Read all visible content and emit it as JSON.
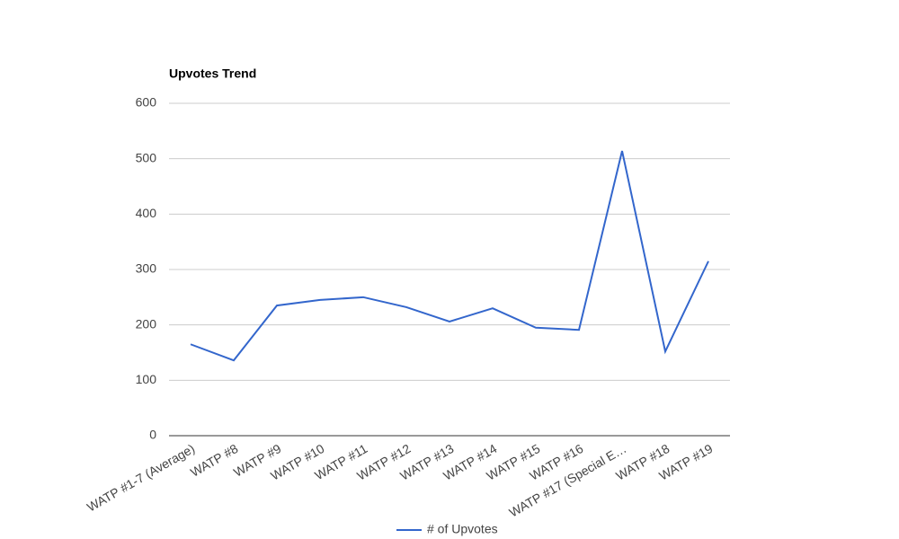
{
  "chart_data": {
    "type": "line",
    "title": "Upvotes Trend",
    "categories": [
      "WATP #1-7 (Average)",
      "WATP #8",
      "WATP #9",
      "WATP #10",
      "WATP #11",
      "WATP #12",
      "WATP #13",
      "WATP #14",
      "WATP #15",
      "WATP #16",
      "WATP #17 (Special E…",
      "WATP #18",
      "WATP #19"
    ],
    "series": [
      {
        "name": "# of Upvotes",
        "color": "#3366cc",
        "values": [
          165,
          136,
          235,
          245,
          250,
          232,
          206,
          230,
          195,
          191,
          514,
          152,
          315
        ]
      }
    ],
    "ylim": [
      0,
      600
    ],
    "yticks": [
      0,
      100,
      200,
      300,
      400,
      500,
      600
    ],
    "grid": true,
    "legend": "bottom"
  }
}
